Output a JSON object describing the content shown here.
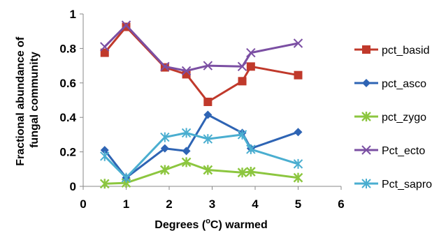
{
  "chart_data": {
    "type": "line",
    "ylabel_lines": [
      "Fractional abundance of",
      "fungal community"
    ],
    "xlabel_parts": [
      "Degrees (",
      "o",
      "C) warmed"
    ],
    "xlim": [
      0,
      6
    ],
    "ylim": [
      0,
      1
    ],
    "x_ticks": [
      0,
      1,
      2,
      3,
      4,
      5,
      6
    ],
    "y_ticks": [
      0,
      0.2,
      0.4,
      0.6,
      0.8,
      1
    ],
    "x_tick_labels": [
      "0",
      "1",
      "2",
      "3",
      "4",
      "5",
      "6"
    ],
    "y_tick_labels": [
      "0",
      "0.2",
      "0.4",
      "0.6",
      "0.8",
      "1"
    ],
    "grid": false,
    "legend_position": "right",
    "series": [
      {
        "name": "pct_basid",
        "color": "#c0392b",
        "marker": "square",
        "x": [
          0.5,
          1.0,
          1.9,
          2.4,
          2.9,
          3.7,
          3.9,
          5.0
        ],
        "y": [
          0.775,
          0.925,
          0.69,
          0.65,
          0.49,
          0.61,
          0.695,
          0.645
        ]
      },
      {
        "name": "pct_asco",
        "color": "#2e64b4",
        "marker": "diamond",
        "x": [
          0.5,
          1.0,
          1.9,
          2.4,
          2.9,
          3.7,
          3.9,
          5.0
        ],
        "y": [
          0.21,
          0.05,
          0.22,
          0.205,
          0.415,
          0.31,
          0.22,
          0.315
        ]
      },
      {
        "name": "pct_zygo",
        "color": "#8cc63f",
        "marker": "asterisk",
        "x": [
          0.5,
          1.0,
          1.9,
          2.4,
          2.9,
          3.7,
          3.9,
          5.0
        ],
        "y": [
          0.015,
          0.02,
          0.095,
          0.14,
          0.095,
          0.08,
          0.085,
          0.05
        ]
      },
      {
        "name": "Pct_ecto",
        "color": "#7b4fa3",
        "marker": "x",
        "x": [
          0.5,
          1.0,
          1.9,
          2.4,
          2.9,
          3.7,
          3.9,
          5.0
        ],
        "y": [
          0.81,
          0.935,
          0.695,
          0.67,
          0.7,
          0.695,
          0.775,
          0.83
        ]
      },
      {
        "name": "Pct_sapro",
        "color": "#4aaed0",
        "marker": "star",
        "x": [
          0.5,
          1.0,
          1.9,
          2.4,
          2.9,
          3.7,
          3.9,
          5.0
        ],
        "y": [
          0.175,
          0.05,
          0.285,
          0.31,
          0.275,
          0.3,
          0.215,
          0.13
        ]
      }
    ]
  }
}
